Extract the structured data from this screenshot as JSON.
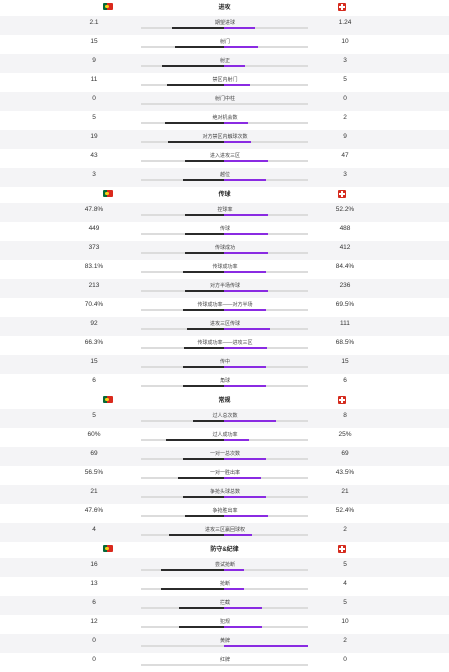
{
  "sections": [
    {
      "title": "进攻",
      "rows": [
        {
          "label": "期望进球",
          "left": "2.1",
          "right": "1.24",
          "lf": 0.63,
          "rf": 0.37
        },
        {
          "label": "射门",
          "left": "15",
          "right": "10",
          "lf": 0.6,
          "rf": 0.4
        },
        {
          "label": "射正",
          "left": "9",
          "right": "3",
          "lf": 0.75,
          "rf": 0.25
        },
        {
          "label": "禁区内射门",
          "left": "11",
          "right": "5",
          "lf": 0.69,
          "rf": 0.31
        },
        {
          "label": "射门中柱",
          "left": "0",
          "right": "0",
          "lf": 0,
          "rf": 0
        },
        {
          "label": "绝对机会数",
          "left": "5",
          "right": "2",
          "lf": 0.71,
          "rf": 0.29
        },
        {
          "label": "对方禁区内触球次数",
          "left": "19",
          "right": "9",
          "lf": 0.68,
          "rf": 0.32
        },
        {
          "label": "进入进攻三区",
          "left": "43",
          "right": "47",
          "lf": 0.48,
          "rf": 0.52
        },
        {
          "label": "越位",
          "left": "3",
          "right": "3",
          "lf": 0.5,
          "rf": 0.5
        }
      ]
    },
    {
      "title": "传球",
      "rows": [
        {
          "label": "控球率",
          "left": "47.8%",
          "right": "52.2%",
          "lf": 0.478,
          "rf": 0.522
        },
        {
          "label": "传球",
          "left": "449",
          "right": "488",
          "lf": 0.48,
          "rf": 0.52
        },
        {
          "label": "传球成功",
          "left": "373",
          "right": "412",
          "lf": 0.475,
          "rf": 0.525
        },
        {
          "label": "传球成功率",
          "left": "83.1%",
          "right": "84.4%",
          "lf": 0.496,
          "rf": 0.504
        },
        {
          "label": "对方半场传球",
          "left": "213",
          "right": "236",
          "lf": 0.474,
          "rf": 0.526
        },
        {
          "label": "传球成功率——对方半场",
          "left": "70.4%",
          "right": "69.5%",
          "lf": 0.503,
          "rf": 0.497
        },
        {
          "label": "进攻三区传球",
          "left": "92",
          "right": "111",
          "lf": 0.453,
          "rf": 0.547
        },
        {
          "label": "传球成功率——进攻三区",
          "left": "66.3%",
          "right": "68.5%",
          "lf": 0.492,
          "rf": 0.508
        },
        {
          "label": "传中",
          "left": "15",
          "right": "15",
          "lf": 0.5,
          "rf": 0.5
        },
        {
          "label": "角球",
          "left": "6",
          "right": "6",
          "lf": 0.5,
          "rf": 0.5
        }
      ]
    },
    {
      "title": "常规",
      "rows": [
        {
          "label": "过人总次数",
          "left": "5",
          "right": "8",
          "lf": 0.385,
          "rf": 0.615
        },
        {
          "label": "过人成功率",
          "left": "60%",
          "right": "25%",
          "lf": 0.706,
          "rf": 0.294
        },
        {
          "label": "一对一总次数",
          "left": "69",
          "right": "69",
          "lf": 0.5,
          "rf": 0.5
        },
        {
          "label": "一对一胜出率",
          "left": "56.5%",
          "right": "43.5%",
          "lf": 0.565,
          "rf": 0.435
        },
        {
          "label": "争抢头球总数",
          "left": "21",
          "right": "21",
          "lf": 0.5,
          "rf": 0.5
        },
        {
          "label": "争抢胜出率",
          "left": "47.6%",
          "right": "52.4%",
          "lf": 0.476,
          "rf": 0.524
        },
        {
          "label": "进攻三区赢回球权",
          "left": "4",
          "right": "2",
          "lf": 0.667,
          "rf": 0.333
        }
      ]
    },
    {
      "title": "防守&纪律",
      "rows": [
        {
          "label": "尝试抢断",
          "left": "16",
          "right": "5",
          "lf": 0.76,
          "rf": 0.24
        },
        {
          "label": "抢断",
          "left": "13",
          "right": "4",
          "lf": 0.765,
          "rf": 0.235
        },
        {
          "label": "拦截",
          "left": "6",
          "right": "5",
          "lf": 0.545,
          "rf": 0.455
        },
        {
          "label": "犯规",
          "left": "12",
          "right": "10",
          "lf": 0.545,
          "rf": 0.455
        },
        {
          "label": "黄牌",
          "left": "0",
          "right": "2",
          "lf": 0,
          "rf": 1
        },
        {
          "label": "红牌",
          "left": "0",
          "right": "0",
          "lf": 0,
          "rf": 0
        }
      ]
    }
  ]
}
